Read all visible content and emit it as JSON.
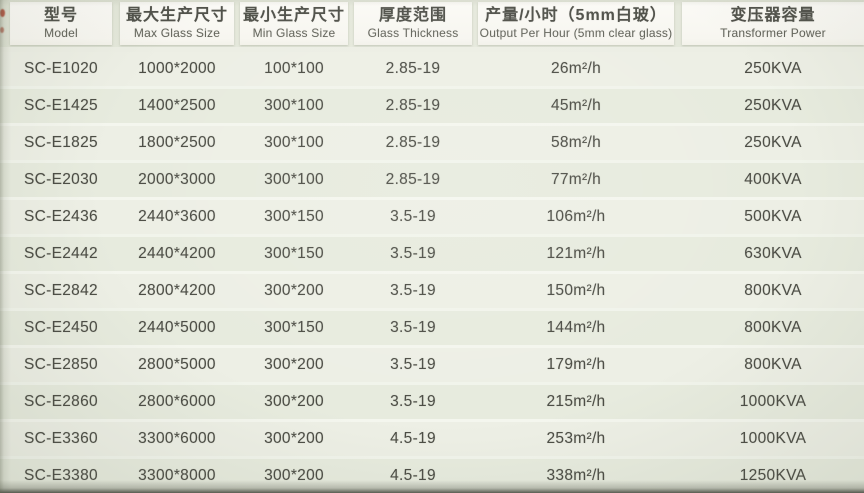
{
  "title": "Glass machine specification table",
  "colors": {
    "photo_background": "#e4e8db",
    "header_cell": "#f9f8f3",
    "row_band_light": "#edefe5",
    "row_band_dark": "#e7ebde",
    "text": "#4c4d45"
  },
  "table": {
    "columns": [
      {
        "zh": "型号",
        "en": "Model"
      },
      {
        "zh": "最大生产尺寸",
        "en": "Max Glass Size"
      },
      {
        "zh": "最小生产尺寸",
        "en": "Min Glass Size"
      },
      {
        "zh": "厚度范围",
        "en": "Glass Thickness"
      },
      {
        "zh": "产量/小时（5mm白玻）",
        "en": "Output Per Hour (5mm clear glass)"
      },
      {
        "zh": "变压器容量",
        "en": "Transformer Power"
      }
    ],
    "rows": [
      {
        "model": "SC-E1020",
        "max_size": "1000*2000",
        "min_size": "100*100",
        "thickness": "2.85-19",
        "output": "26m²/h",
        "transformer": "250KVA"
      },
      {
        "model": "SC-E1425",
        "max_size": "1400*2500",
        "min_size": "300*100",
        "thickness": "2.85-19",
        "output": "45m²/h",
        "transformer": "250KVA"
      },
      {
        "model": "SC-E1825",
        "max_size": "1800*2500",
        "min_size": "300*100",
        "thickness": "2.85-19",
        "output": "58m²/h",
        "transformer": "250KVA"
      },
      {
        "model": "SC-E2030",
        "max_size": "2000*3000",
        "min_size": "300*100",
        "thickness": "2.85-19",
        "output": "77m²/h",
        "transformer": "400KVA"
      },
      {
        "model": "SC-E2436",
        "max_size": "2440*3600",
        "min_size": "300*150",
        "thickness": "3.5-19",
        "output": "106m²/h",
        "transformer": "500KVA"
      },
      {
        "model": "SC-E2442",
        "max_size": "2440*4200",
        "min_size": "300*150",
        "thickness": "3.5-19",
        "output": "121m²/h",
        "transformer": "630KVA"
      },
      {
        "model": "SC-E2842",
        "max_size": "2800*4200",
        "min_size": "300*200",
        "thickness": "3.5-19",
        "output": "150m²/h",
        "transformer": "800KVA"
      },
      {
        "model": "SC-E2450",
        "max_size": "2440*5000",
        "min_size": "300*150",
        "thickness": "3.5-19",
        "output": "144m²/h",
        "transformer": "800KVA"
      },
      {
        "model": "SC-E2850",
        "max_size": "2800*5000",
        "min_size": "300*200",
        "thickness": "3.5-19",
        "output": "179m²/h",
        "transformer": "800KVA"
      },
      {
        "model": "SC-E2860",
        "max_size": "2800*6000",
        "min_size": "300*200",
        "thickness": "3.5-19",
        "output": "215m²/h",
        "transformer": "1000KVA"
      },
      {
        "model": "SC-E3360",
        "max_size": "3300*6000",
        "min_size": "300*200",
        "thickness": "4.5-19",
        "output": "253m²/h",
        "transformer": "1000KVA"
      },
      {
        "model": "SC-E3380",
        "max_size": "3300*8000",
        "min_size": "300*200",
        "thickness": "4.5-19",
        "output": "338m²/h",
        "transformer": "1250KVA"
      }
    ]
  }
}
